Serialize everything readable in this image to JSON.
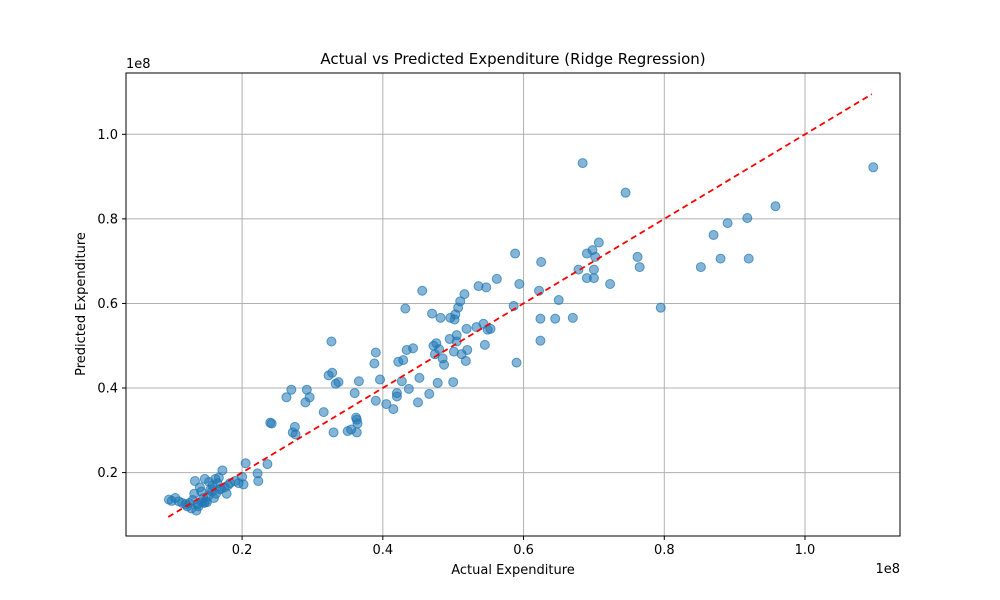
{
  "chart_data": {
    "type": "scatter",
    "title": "Actual vs Predicted Expenditure (Ridge Regression)",
    "xlabel": "Actual Expenditure",
    "ylabel": "Predicted Expenditure",
    "x_offset_label": "1e8",
    "y_offset_label": "1e8",
    "xlim": [
      0.035,
      1.135
    ],
    "ylim": [
      0.05,
      1.145
    ],
    "x_ticks": [
      0.2,
      0.4,
      0.6,
      0.8,
      1.0
    ],
    "x_tick_labels": [
      "0.2",
      "0.4",
      "0.6",
      "0.8",
      "1.0"
    ],
    "y_ticks": [
      0.2,
      0.4,
      0.6,
      0.8,
      1.0
    ],
    "y_tick_labels": [
      "0.2",
      "0.4",
      "0.6",
      "0.8",
      "1.0"
    ],
    "grid": true,
    "point_color": "#1f77b4",
    "reference_line": {
      "style": "dashed",
      "color": "#ff0000",
      "x": [
        0.095,
        1.095
      ],
      "y": [
        0.095,
        1.095
      ]
    },
    "points": [
      [
        0.096,
        0.136
      ],
      [
        0.1,
        0.133
      ],
      [
        0.105,
        0.14
      ],
      [
        0.11,
        0.132
      ],
      [
        0.115,
        0.128
      ],
      [
        0.12,
        0.125
      ],
      [
        0.122,
        0.12
      ],
      [
        0.125,
        0.128
      ],
      [
        0.128,
        0.115
      ],
      [
        0.13,
        0.135
      ],
      [
        0.132,
        0.15
      ],
      [
        0.133,
        0.18
      ],
      [
        0.135,
        0.11
      ],
      [
        0.137,
        0.125
      ],
      [
        0.138,
        0.12
      ],
      [
        0.14,
        0.165
      ],
      [
        0.142,
        0.155
      ],
      [
        0.143,
        0.13
      ],
      [
        0.145,
        0.14
      ],
      [
        0.146,
        0.128
      ],
      [
        0.147,
        0.185
      ],
      [
        0.148,
        0.132
      ],
      [
        0.15,
        0.13
      ],
      [
        0.152,
        0.145
      ],
      [
        0.153,
        0.178
      ],
      [
        0.155,
        0.16
      ],
      [
        0.157,
        0.155
      ],
      [
        0.158,
        0.17
      ],
      [
        0.16,
        0.14
      ],
      [
        0.162,
        0.185
      ],
      [
        0.163,
        0.15
      ],
      [
        0.165,
        0.175
      ],
      [
        0.167,
        0.188
      ],
      [
        0.168,
        0.16
      ],
      [
        0.17,
        0.162
      ],
      [
        0.172,
        0.205
      ],
      [
        0.175,
        0.165
      ],
      [
        0.178,
        0.15
      ],
      [
        0.18,
        0.17
      ],
      [
        0.183,
        0.175
      ],
      [
        0.19,
        0.18
      ],
      [
        0.195,
        0.175
      ],
      [
        0.2,
        0.19
      ],
      [
        0.202,
        0.172
      ],
      [
        0.205,
        0.222
      ],
      [
        0.222,
        0.198
      ],
      [
        0.223,
        0.18
      ],
      [
        0.236,
        0.22
      ],
      [
        0.24,
        0.318
      ],
      [
        0.242,
        0.316
      ],
      [
        0.263,
        0.378
      ],
      [
        0.27,
        0.396
      ],
      [
        0.272,
        0.295
      ],
      [
        0.275,
        0.308
      ],
      [
        0.276,
        0.29
      ],
      [
        0.29,
        0.366
      ],
      [
        0.292,
        0.396
      ],
      [
        0.296,
        0.378
      ],
      [
        0.316,
        0.343
      ],
      [
        0.323,
        0.43
      ],
      [
        0.327,
        0.51
      ],
      [
        0.328,
        0.436
      ],
      [
        0.33,
        0.295
      ],
      [
        0.333,
        0.41
      ],
      [
        0.337,
        0.414
      ],
      [
        0.35,
        0.298
      ],
      [
        0.355,
        0.302
      ],
      [
        0.36,
        0.388
      ],
      [
        0.362,
        0.33
      ],
      [
        0.363,
        0.325
      ],
      [
        0.364,
        0.316
      ],
      [
        0.363,
        0.295
      ],
      [
        0.366,
        0.416
      ],
      [
        0.388,
        0.458
      ],
      [
        0.39,
        0.484
      ],
      [
        0.39,
        0.37
      ],
      [
        0.396,
        0.42
      ],
      [
        0.405,
        0.362
      ],
      [
        0.415,
        0.35
      ],
      [
        0.42,
        0.38
      ],
      [
        0.42,
        0.388
      ],
      [
        0.422,
        0.462
      ],
      [
        0.427,
        0.416
      ],
      [
        0.429,
        0.466
      ],
      [
        0.432,
        0.588
      ],
      [
        0.434,
        0.49
      ],
      [
        0.437,
        0.398
      ],
      [
        0.443,
        0.494
      ],
      [
        0.45,
        0.366
      ],
      [
        0.452,
        0.424
      ],
      [
        0.456,
        0.63
      ],
      [
        0.466,
        0.386
      ],
      [
        0.47,
        0.576
      ],
      [
        0.472,
        0.5
      ],
      [
        0.474,
        0.48
      ],
      [
        0.476,
        0.506
      ],
      [
        0.478,
        0.412
      ],
      [
        0.48,
        0.492
      ],
      [
        0.482,
        0.566
      ],
      [
        0.485,
        0.47
      ],
      [
        0.487,
        0.455
      ],
      [
        0.495,
        0.516
      ],
      [
        0.496,
        0.566
      ],
      [
        0.5,
        0.414
      ],
      [
        0.501,
        0.486
      ],
      [
        0.502,
        0.562
      ],
      [
        0.503,
        0.574
      ],
      [
        0.505,
        0.51
      ],
      [
        0.505,
        0.525
      ],
      [
        0.507,
        0.59
      ],
      [
        0.51,
        0.605
      ],
      [
        0.512,
        0.48
      ],
      [
        0.516,
        0.622
      ],
      [
        0.518,
        0.464
      ],
      [
        0.519,
        0.54
      ],
      [
        0.52,
        0.49
      ],
      [
        0.533,
        0.544
      ],
      [
        0.536,
        0.641
      ],
      [
        0.543,
        0.552
      ],
      [
        0.545,
        0.502
      ],
      [
        0.547,
        0.638
      ],
      [
        0.549,
        0.538
      ],
      [
        0.553,
        0.54
      ],
      [
        0.562,
        0.658
      ],
      [
        0.586,
        0.594
      ],
      [
        0.588,
        0.718
      ],
      [
        0.59,
        0.46
      ],
      [
        0.594,
        0.646
      ],
      [
        0.622,
        0.63
      ],
      [
        0.624,
        0.512
      ],
      [
        0.624,
        0.564
      ],
      [
        0.625,
        0.698
      ],
      [
        0.645,
        0.564
      ],
      [
        0.65,
        0.608
      ],
      [
        0.67,
        0.566
      ],
      [
        0.678,
        0.68
      ],
      [
        0.684,
        0.932
      ],
      [
        0.69,
        0.66
      ],
      [
        0.69,
        0.718
      ],
      [
        0.698,
        0.726
      ],
      [
        0.7,
        0.68
      ],
      [
        0.7,
        0.66
      ],
      [
        0.702,
        0.71
      ],
      [
        0.707,
        0.744
      ],
      [
        0.723,
        0.646
      ],
      [
        0.745,
        0.862
      ],
      [
        0.762,
        0.71
      ],
      [
        0.765,
        0.686
      ],
      [
        0.795,
        0.59
      ],
      [
        0.852,
        0.686
      ],
      [
        0.87,
        0.762
      ],
      [
        0.88,
        0.706
      ],
      [
        0.89,
        0.79
      ],
      [
        0.918,
        0.802
      ],
      [
        0.92,
        0.706
      ],
      [
        0.958,
        0.83
      ],
      [
        1.097,
        0.922
      ]
    ]
  }
}
